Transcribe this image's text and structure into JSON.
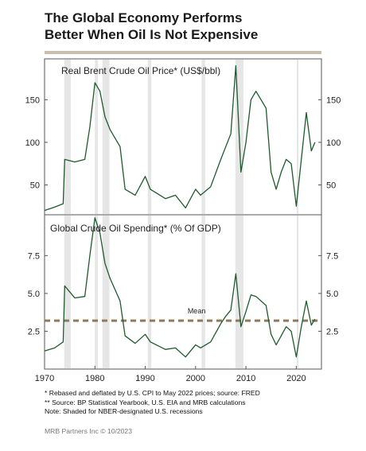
{
  "title_line1": "The Global Economy Performs",
  "title_line2": "Better When Oil Is Not Expensive",
  "footnotes": [
    "*  Rebased and deflated by U.S. CPI to May 2022 prices; source: FRED",
    "** Source: BP Statistical Yearbook, U.S. EIA and MRB calculations",
    "Note: Shaded for NBER-designated U.S. recessions"
  ],
  "credit": "MRB Partners Inc © 10/2023",
  "colors": {
    "line": "#1f5a2e",
    "recession": "#e6e6e6",
    "mean": "#8c7b5e",
    "rule": "#c9bfad",
    "axis": "#555555"
  },
  "chart_data": [
    {
      "type": "line",
      "title": "Real Brent Crude Oil Price* (US$/bbl)",
      "series": [
        {
          "values": [
            [
              1970,
              20
            ],
            [
              1972,
              24
            ],
            [
              1973.7,
              28
            ],
            [
              1974,
              80
            ],
            [
              1976,
              77
            ],
            [
              1978,
              80
            ],
            [
              1979,
              118
            ],
            [
              1980,
              170
            ],
            [
              1981,
              160
            ],
            [
              1982,
              130
            ],
            [
              1983,
              115
            ],
            [
              1985,
              95
            ],
            [
              1986,
              45
            ],
            [
              1988,
              38
            ],
            [
              1990,
              60
            ],
            [
              1991,
              45
            ],
            [
              1994,
              34
            ],
            [
              1996,
              38
            ],
            [
              1998,
              23
            ],
            [
              2000,
              45
            ],
            [
              2001,
              38
            ],
            [
              2003,
              48
            ],
            [
              2005,
              80
            ],
            [
              2006,
              95
            ],
            [
              2007,
              110
            ],
            [
              2008,
              190
            ],
            [
              2009,
              65
            ],
            [
              2010,
              100
            ],
            [
              2011,
              150
            ],
            [
              2012,
              160
            ],
            [
              2013,
              150
            ],
            [
              2014,
              140
            ],
            [
              2015,
              65
            ],
            [
              2016,
              45
            ],
            [
              2017,
              65
            ],
            [
              2018,
              80
            ],
            [
              2019,
              75
            ],
            [
              2020,
              25
            ],
            [
              2021,
              80
            ],
            [
              2022,
              135
            ],
            [
              2023,
              90
            ],
            [
              2023.7,
              100
            ]
          ]
        }
      ],
      "ylim": [
        15,
        198
      ],
      "yticks": [
        50,
        100,
        150
      ]
    },
    {
      "type": "line",
      "title": "Global Crude Oil Spending* (% Of GDP)",
      "series": [
        {
          "values": [
            [
              1970,
              1.2
            ],
            [
              1972,
              1.4
            ],
            [
              1973.7,
              1.8
            ],
            [
              1974,
              5.5
            ],
            [
              1976,
              4.7
            ],
            [
              1978,
              4.8
            ],
            [
              1979,
              7.5
            ],
            [
              1980,
              10.0
            ],
            [
              1981,
              9.0
            ],
            [
              1982,
              7.0
            ],
            [
              1983,
              6.0
            ],
            [
              1985,
              4.5
            ],
            [
              1986,
              2.2
            ],
            [
              1988,
              1.7
            ],
            [
              1990,
              2.3
            ],
            [
              1991,
              1.8
            ],
            [
              1994,
              1.3
            ],
            [
              1996,
              1.4
            ],
            [
              1998,
              0.8
            ],
            [
              2000,
              1.6
            ],
            [
              2001,
              1.4
            ],
            [
              2003,
              1.8
            ],
            [
              2005,
              3.0
            ],
            [
              2006,
              3.5
            ],
            [
              2007,
              3.9
            ],
            [
              2008,
              6.3
            ],
            [
              2009,
              2.8
            ],
            [
              2010,
              3.8
            ],
            [
              2011,
              4.9
            ],
            [
              2012,
              4.8
            ],
            [
              2013,
              4.5
            ],
            [
              2014,
              4.2
            ],
            [
              2015,
              2.3
            ],
            [
              2016,
              1.6
            ],
            [
              2017,
              2.2
            ],
            [
              2018,
              2.8
            ],
            [
              2019,
              2.5
            ],
            [
              2020,
              0.8
            ],
            [
              2021,
              2.8
            ],
            [
              2022,
              4.5
            ],
            [
              2023,
              2.9
            ],
            [
              2023.7,
              3.3
            ]
          ]
        }
      ],
      "ylim": [
        0,
        10.2
      ],
      "yticks": [
        2.5,
        5.0,
        7.5
      ],
      "mean": 3.2,
      "mean_label": "Mean"
    }
  ],
  "x_axis": {
    "range": [
      1970,
      2025
    ],
    "ticks": [
      1970,
      1980,
      1990,
      2000,
      2010,
      2020
    ]
  },
  "recessions": [
    [
      1973.9,
      1975.2
    ],
    [
      1980.0,
      1980.6
    ],
    [
      1981.5,
      1982.9
    ],
    [
      1990.5,
      1991.2
    ],
    [
      2001.2,
      2001.9
    ],
    [
      2007.9,
      2009.5
    ],
    [
      2020.1,
      2020.4
    ]
  ]
}
